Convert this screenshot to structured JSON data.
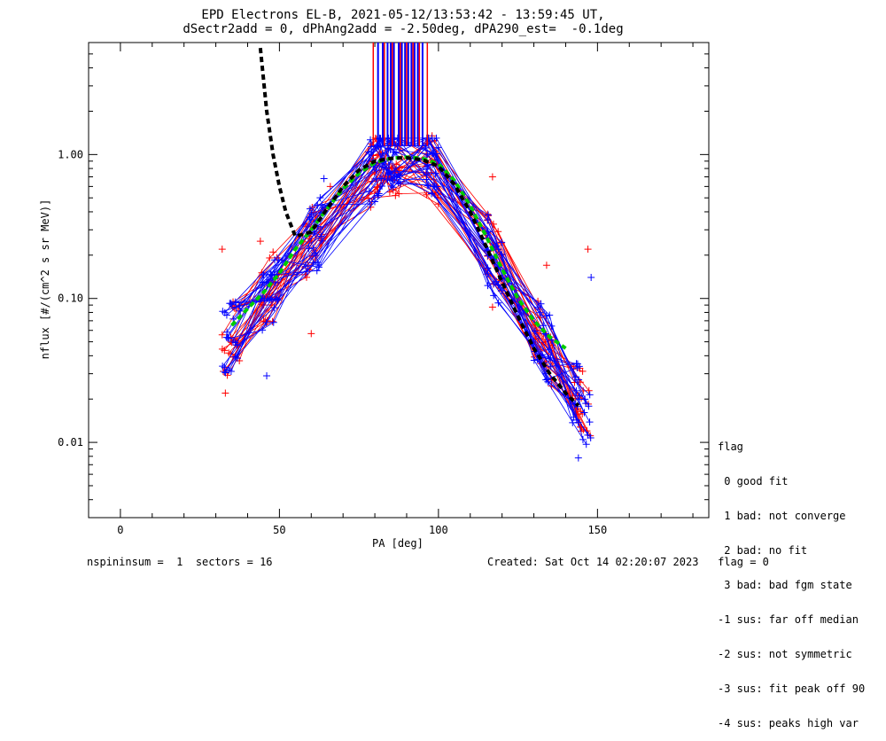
{
  "header": {
    "title_line1": "EPD Electrons EL-B, 2021-05-12/13:53:42 - 13:59:45 UT,",
    "title_line2": "dSectr2add = 0, dPhAng2add = -2.50deg, dPA290_est=  -0.1deg"
  },
  "legend": {
    "title": "flag",
    "items": [
      " 0 good fit",
      " 1 bad: not converge",
      " 2 bad: no fit",
      " 3 bad: bad fgm state",
      "-1 sus: far off median",
      "-2 sus: not symmetric",
      "-3 sus: fit peak off 90",
      "-4 sus: peaks high var"
    ]
  },
  "footer": {
    "left": "nspininsum =  1  sectors = 16",
    "right": "Created: Sat Oct 14 02:20:07 2023   flag = 0"
  },
  "colors": {
    "red": "#ff0000",
    "blue": "#0000ff",
    "green": "#00cc00",
    "black": "#000000"
  },
  "chart_data": {
    "type": "line",
    "xlabel": "PA [deg]",
    "ylabel": "nflux [#/(cm^2 s sr MeV)]",
    "xlim": [
      -10,
      185
    ],
    "ylim": [
      0.003,
      6.0
    ],
    "yscale": "log",
    "xticks": [
      0,
      50,
      100,
      150
    ],
    "xtick_labels": [
      "0",
      "50",
      "100",
      "150"
    ],
    "yticks": [
      0.01,
      0.1,
      1.0
    ],
    "ytick_labels": [
      "0.01",
      "0.10",
      "1.00"
    ],
    "grid": false,
    "fit_median_black": {
      "x": [
        44,
        46,
        48,
        50,
        52,
        55,
        60,
        65,
        70,
        75,
        80,
        85,
        90,
        95,
        100,
        105,
        110,
        115,
        120,
        125,
        130,
        135,
        140,
        144
      ],
      "y": [
        5.5,
        2.0,
        1.0,
        0.6,
        0.4,
        0.27,
        0.29,
        0.42,
        0.6,
        0.78,
        0.9,
        0.94,
        0.95,
        0.92,
        0.83,
        0.62,
        0.4,
        0.23,
        0.13,
        0.075,
        0.045,
        0.03,
        0.022,
        0.018
      ]
    },
    "fit_green": {
      "x": [
        35,
        40,
        45,
        50,
        55,
        60,
        65,
        70,
        75,
        80,
        85,
        90,
        95,
        100,
        105,
        110,
        115,
        120,
        125,
        130,
        135,
        140
      ],
      "y": [
        0.065,
        0.085,
        0.11,
        0.15,
        0.22,
        0.3,
        0.42,
        0.58,
        0.74,
        0.88,
        0.94,
        0.96,
        0.94,
        0.86,
        0.66,
        0.44,
        0.27,
        0.16,
        0.1,
        0.07,
        0.054,
        0.045
      ]
    },
    "blue_spikes_x": [
      81,
      82.5,
      84,
      85,
      86,
      87.5,
      88.5,
      89.5,
      90.5,
      91.5,
      92.5,
      93.5,
      95
    ],
    "red_spikes_x": [
      79.5,
      83,
      85.5,
      88,
      90,
      92,
      94,
      96.5
    ],
    "annotation_x": [
      [
        79,
        96
      ]
    ],
    "red_points_extra": [
      {
        "x": 32,
        "y": 0.22
      },
      {
        "x": 33,
        "y": 0.022
      },
      {
        "x": 44,
        "y": 0.25
      },
      {
        "x": 48,
        "y": 0.21
      },
      {
        "x": 60,
        "y": 0.057
      },
      {
        "x": 66,
        "y": 0.6
      },
      {
        "x": 79,
        "y": 0.47
      },
      {
        "x": 98,
        "y": 1.35
      },
      {
        "x": 117,
        "y": 0.7
      },
      {
        "x": 117,
        "y": 0.087
      },
      {
        "x": 134,
        "y": 0.17
      },
      {
        "x": 147,
        "y": 0.22
      }
    ],
    "blue_points_extra": [
      {
        "x": 148,
        "y": 0.14
      },
      {
        "x": 144,
        "y": 0.0078
      },
      {
        "x": 46,
        "y": 0.029
      },
      {
        "x": 64,
        "y": 0.68
      }
    ]
  }
}
